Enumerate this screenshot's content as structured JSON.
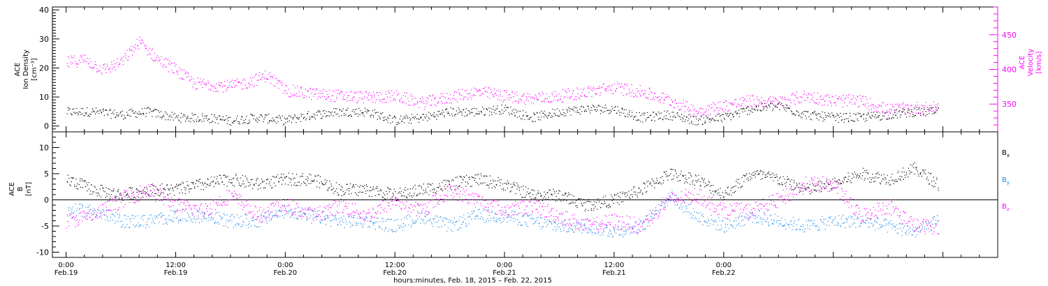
{
  "chart_data": [
    {
      "type": "scatter",
      "panel": "top",
      "ylabel": [
        "ACE",
        "Ion Density",
        "[cm⁻³]"
      ],
      "ylabel_right": [
        "ACE",
        "Velocity",
        "[km/s]"
      ],
      "ylim": [
        -2,
        41
      ],
      "yticks": [
        "0",
        "10",
        "20",
        "30",
        "40"
      ],
      "yticks_values": [
        0,
        10,
        20,
        30,
        40
      ],
      "y2lim": [
        310,
        490
      ],
      "y2ticks": [
        "350",
        "400",
        "450"
      ],
      "y2ticks_values": [
        350,
        400,
        450
      ],
      "series": [
        {
          "color": "#000000",
          "axis": "left",
          "x": [
            0,
            3,
            6,
            9,
            12,
            15,
            18,
            21,
            24,
            27,
            30,
            33,
            36,
            39,
            42,
            45,
            48,
            51,
            54,
            57,
            60,
            63,
            66,
            69,
            72,
            75,
            78,
            81,
            84,
            87,
            90,
            93,
            95.5
          ],
          "y": [
            5,
            5,
            4,
            5,
            3,
            3,
            2,
            3,
            2,
            4,
            5,
            5,
            2,
            3,
            5,
            5,
            6,
            3,
            5,
            6,
            6,
            3,
            4,
            2,
            3,
            6,
            7,
            4,
            3,
            3,
            4,
            5,
            5
          ]
        },
        {
          "color": "#ff00ff",
          "axis": "right",
          "x": [
            0,
            2,
            4,
            6,
            8,
            10,
            12,
            14,
            16,
            18,
            20,
            22,
            24,
            27,
            30,
            33,
            36,
            39,
            42,
            45,
            48,
            51,
            54,
            57,
            60,
            63,
            66,
            69,
            72,
            75,
            78,
            81,
            84,
            87,
            90,
            93,
            95.5
          ],
          "y": [
            410,
            415,
            400,
            410,
            440,
            415,
            400,
            380,
            378,
            376,
            382,
            392,
            370,
            365,
            362,
            360,
            362,
            352,
            360,
            368,
            362,
            358,
            362,
            368,
            374,
            368,
            356,
            340,
            348,
            355,
            353,
            362,
            355,
            355,
            342,
            345,
            345
          ]
        }
      ]
    },
    {
      "type": "scatter",
      "panel": "bottom",
      "ylabel": [
        "ACE",
        "B",
        "[nT]"
      ],
      "ylim": [
        -11,
        13
      ],
      "yticks": [
        "-10",
        "-5",
        "0",
        "5",
        "10"
      ],
      "yticks_values": [
        -10,
        -5,
        0,
        5,
        10
      ],
      "zero_line": true,
      "legend": [
        "Bx",
        "By",
        "Bz"
      ],
      "legend_placement": "right",
      "series": [
        {
          "name": "Bx",
          "color": "#000000",
          "x": [
            0,
            3,
            6,
            9,
            12,
            15,
            18,
            21,
            24,
            27,
            30,
            33,
            36,
            39,
            42,
            45,
            48,
            51,
            54,
            57,
            60,
            63,
            66,
            69,
            72,
            75,
            78,
            81,
            84,
            87,
            90,
            93,
            95.5
          ],
          "y": [
            4,
            2,
            1,
            2,
            2,
            3,
            4,
            3,
            4,
            4,
            2,
            2,
            1,
            2,
            3,
            4,
            3,
            1,
            1,
            -1,
            0,
            2,
            5,
            4,
            1,
            5,
            4,
            2,
            3,
            5,
            4,
            6,
            3
          ]
        },
        {
          "name": "By",
          "color": "#1e88e5",
          "x": [
            0,
            3,
            6,
            9,
            12,
            15,
            18,
            21,
            24,
            27,
            30,
            33,
            36,
            39,
            42,
            45,
            48,
            51,
            54,
            57,
            60,
            63,
            66,
            69,
            72,
            75,
            78,
            81,
            84,
            87,
            90,
            93,
            95.5
          ],
          "y": [
            -2,
            -2,
            -4,
            -4,
            -3,
            -3,
            -4,
            -4,
            -2,
            -3,
            -4,
            -4,
            -5,
            -3,
            -5,
            -3,
            -3,
            -4,
            -5,
            -5,
            -6,
            -5,
            1,
            -3,
            -5,
            -3,
            -4,
            -5,
            -4,
            -4,
            -5,
            -6,
            -4
          ]
        },
        {
          "name": "Bz",
          "color": "#ff00ff",
          "x": [
            0,
            3,
            6,
            9,
            12,
            15,
            18,
            21,
            24,
            27,
            30,
            33,
            36,
            39,
            42,
            45,
            48,
            51,
            54,
            57,
            60,
            63,
            66,
            69,
            72,
            75,
            78,
            81,
            84,
            87,
            90,
            93,
            95.5
          ],
          "y": [
            -4,
            -3,
            0,
            2,
            -1,
            -2,
            1,
            -3,
            -1,
            -3,
            -1,
            -3,
            0,
            -2,
            2,
            0,
            -2,
            -1,
            -3,
            -5,
            -4,
            -5,
            0,
            1,
            -2,
            -2,
            0,
            3,
            3,
            -3,
            -1,
            -5,
            -5
          ]
        }
      ]
    },
    {
      "type": "axis",
      "panel": "time",
      "xlabel": "hours:minutes, Feb. 18, 2015 – Feb. 22, 2015",
      "xlim": [
        -1.5,
        102
      ],
      "xticks_values": [
        0,
        12,
        24,
        36,
        48,
        60,
        72,
        84,
        96
      ],
      "xticks": [
        [
          "0:00",
          "Feb.19"
        ],
        [
          "12:00",
          "Feb.19"
        ],
        [
          "0:00",
          "Feb.20"
        ],
        [
          "12:00",
          "Feb.20"
        ],
        [
          "0:00",
          "Feb.21"
        ],
        [
          "12:00",
          "Feb.21"
        ],
        [
          "0:00",
          "Feb.22"
        ]
      ],
      "xticks_hours": [
        0,
        12,
        24,
        36,
        48,
        60,
        72
      ]
    }
  ]
}
